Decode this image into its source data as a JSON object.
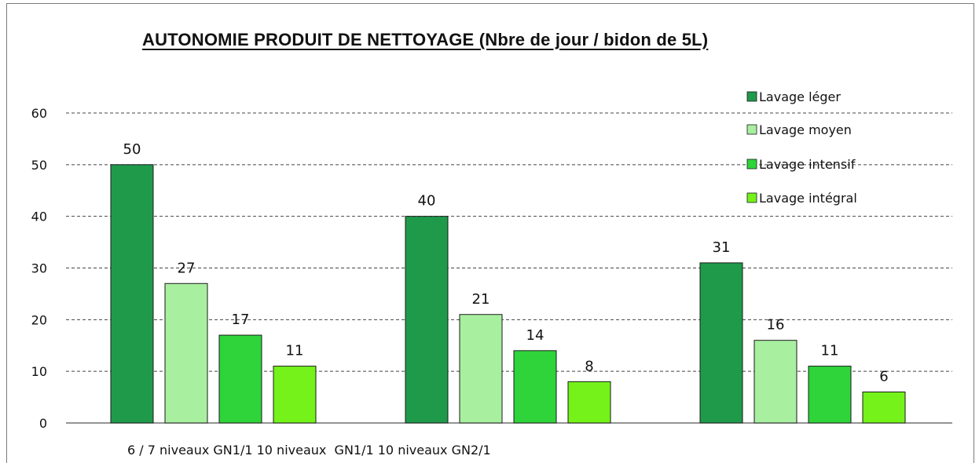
{
  "chart_data": {
    "type": "bar",
    "title": "AUTONOMIE PRODUIT DE NETTOYAGE (Nbre de jour / bidon de 5L)",
    "category_text": "6 / 7 niveaux GN1/1 10 niveaux  GN1/1 10 niveaux GN2/1",
    "categories": [
      "6 / 7 niveaux GN1/1",
      "10 niveaux  GN1/1",
      "10 niveaux GN2/1"
    ],
    "series": [
      {
        "name": "Lavage léger",
        "color": "#1f9a4b",
        "values": [
          50,
          40,
          31
        ]
      },
      {
        "name": "Lavage moyen",
        "color": "#a8efa0",
        "values": [
          27,
          21,
          16
        ]
      },
      {
        "name": "Lavage intensif",
        "color": "#2ed43a",
        "values": [
          17,
          14,
          11
        ]
      },
      {
        "name": "Lavage intégral",
        "color": "#74f21a",
        "values": [
          11,
          8,
          6
        ]
      }
    ],
    "ylim": [
      0,
      60
    ],
    "yticks": [
      0,
      10,
      20,
      30,
      40,
      50,
      60
    ],
    "grid": "dashed",
    "legend_position": "top-right"
  }
}
